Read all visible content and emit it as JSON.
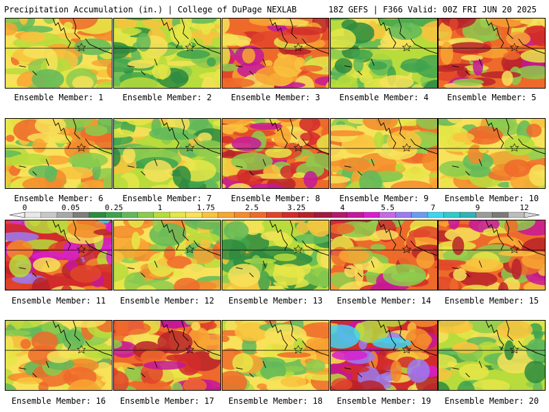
{
  "header": {
    "left": "Precipitation Accumulation (in.) | College of DuPage NEXLAB",
    "right": "18Z GEFS | F366 Valid: 00Z FRI JUN 20 2025"
  },
  "legend": {
    "tick_labels": [
      "0",
      "0.05",
      "0.25",
      "1",
      "1.75",
      "2.5",
      "3.25",
      "4",
      "5.5",
      "7",
      "9",
      "12"
    ],
    "colors": [
      "#e8e8e8",
      "#c8c8c8",
      "#a8a8a8",
      "#7d7d7d",
      "#2e8b3f",
      "#3fa34d",
      "#62b85a",
      "#8ccb4e",
      "#b7dc3c",
      "#e6e648",
      "#f7e25a",
      "#f9c33e",
      "#f8a532",
      "#f58a2c",
      "#ee6a2a",
      "#e0452a",
      "#d22b2b",
      "#b8232a",
      "#a31a40",
      "#b01a6e",
      "#c5189a",
      "#d81ecf",
      "#c46ae6",
      "#9b7cf0",
      "#6a9cf0",
      "#3fd5f0",
      "#32c9c9",
      "#2fb3b3",
      "#9a9a9a",
      "#7a7a7a",
      "#bdbdbd"
    ]
  },
  "panels": [
    {
      "label": "Ensemble Member: 1",
      "tone": "moderate",
      "seed": 11
    },
    {
      "label": "Ensemble Member: 2",
      "tone": "dry",
      "seed": 23
    },
    {
      "label": "Ensemble Member: 3",
      "tone": "wet",
      "seed": 37
    },
    {
      "label": "Ensemble Member: 4",
      "tone": "dry",
      "seed": 41
    },
    {
      "label": "Ensemble Member: 5",
      "tone": "wet",
      "seed": 53
    },
    {
      "label": "Ensemble Member: 6",
      "tone": "moderate",
      "seed": 67
    },
    {
      "label": "Ensemble Member: 7",
      "tone": "dry",
      "seed": 71
    },
    {
      "label": "Ensemble Member: 8",
      "tone": "wet",
      "seed": 83
    },
    {
      "label": "Ensemble Member: 9",
      "tone": "moderate",
      "seed": 97
    },
    {
      "label": "Ensemble Member: 10",
      "tone": "moderate",
      "seed": 101
    },
    {
      "label": "Ensemble Member: 11",
      "tone": "verywet",
      "seed": 113
    },
    {
      "label": "Ensemble Member: 12",
      "tone": "moderate",
      "seed": 127
    },
    {
      "label": "Ensemble Member: 13",
      "tone": "dry",
      "seed": 131
    },
    {
      "label": "Ensemble Member: 14",
      "tone": "wet",
      "seed": 149
    },
    {
      "label": "Ensemble Member: 15",
      "tone": "wet",
      "seed": 157
    },
    {
      "label": "Ensemble Member: 16",
      "tone": "moderate",
      "seed": 163
    },
    {
      "label": "Ensemble Member: 17",
      "tone": "wet",
      "seed": 179
    },
    {
      "label": "Ensemble Member: 18",
      "tone": "moderate",
      "seed": 181
    },
    {
      "label": "Ensemble Member: 19",
      "tone": "verywet",
      "seed": 191
    },
    {
      "label": "Ensemble Member: 20",
      "tone": "dry",
      "seed": 197
    }
  ]
}
